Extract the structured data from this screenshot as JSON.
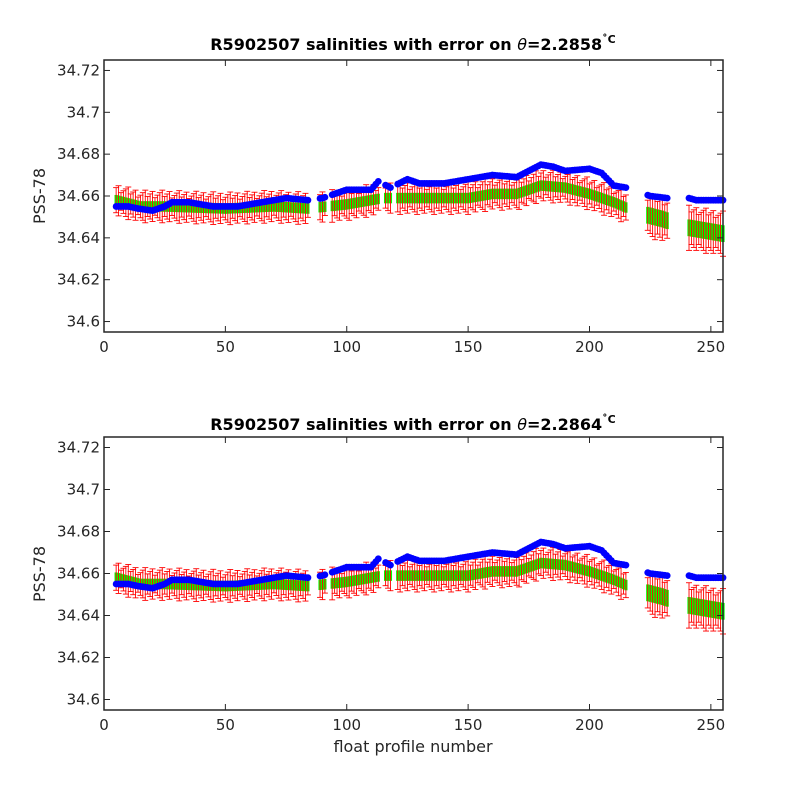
{
  "chart_data": [
    {
      "type": "scatter",
      "title": "R5902507 salinities with error on θ=2.2858°C",
      "title_parts": {
        "prefix": "R5902507 salinities with error on ",
        "symbol": "θ",
        "value": "=2.2858",
        "unit": "˚C"
      },
      "xlabel": "",
      "ylabel": "PSS-78",
      "xlim": [
        0,
        255
      ],
      "ylim": [
        34.595,
        34.725
      ],
      "xticks": [
        0,
        50,
        100,
        150,
        200,
        250
      ],
      "yticks": [
        34.6,
        34.62,
        34.64,
        34.66,
        34.68,
        34.7,
        34.72
      ],
      "ytick_labels": [
        "34.6",
        "34.62",
        "34.64",
        "34.66",
        "34.68",
        "34.7",
        "34.72"
      ],
      "grid": false,
      "series_colors": {
        "raw": "#0000ff",
        "calibrated": "#00ff00",
        "error_bars": "#ff0000"
      },
      "raw_anchors": [
        [
          5,
          34.655
        ],
        [
          10,
          34.655
        ],
        [
          14,
          34.654
        ],
        [
          20,
          34.653
        ],
        [
          25,
          34.655
        ],
        [
          28,
          34.657
        ],
        [
          35,
          34.657
        ],
        [
          45,
          34.655
        ],
        [
          55,
          34.655
        ],
        [
          65,
          34.657
        ],
        [
          75,
          34.659
        ],
        [
          84,
          34.658
        ],
        [
          90,
          34.659
        ],
        [
          100,
          34.663
        ],
        [
          110,
          34.663
        ],
        [
          113,
          34.667
        ],
        [
          118,
          34.664
        ],
        [
          125,
          34.668
        ],
        [
          130,
          34.666
        ],
        [
          140,
          34.666
        ],
        [
          150,
          34.668
        ],
        [
          160,
          34.67
        ],
        [
          170,
          34.669
        ],
        [
          175,
          34.672
        ],
        [
          180,
          34.675
        ],
        [
          185,
          34.674
        ],
        [
          190,
          34.672
        ],
        [
          200,
          34.673
        ],
        [
          205,
          34.671
        ],
        [
          210,
          34.665
        ],
        [
          215,
          34.664
        ],
        [
          218,
          34.663
        ],
        [
          225,
          34.66
        ],
        [
          232,
          34.659
        ],
        [
          238,
          34.66
        ],
        [
          244,
          34.658
        ],
        [
          255,
          34.658
        ]
      ],
      "cal_anchors": [
        [
          5,
          34.658
        ],
        [
          15,
          34.655
        ],
        [
          25,
          34.655
        ],
        [
          50,
          34.654
        ],
        [
          70,
          34.655
        ],
        [
          84,
          34.654
        ],
        [
          100,
          34.656
        ],
        [
          115,
          34.659
        ],
        [
          125,
          34.659
        ],
        [
          150,
          34.659
        ],
        [
          160,
          34.661
        ],
        [
          170,
          34.661
        ],
        [
          180,
          34.665
        ],
        [
          190,
          34.664
        ],
        [
          200,
          34.661
        ],
        [
          210,
          34.657
        ],
        [
          220,
          34.652
        ],
        [
          230,
          34.649
        ],
        [
          240,
          34.645
        ],
        [
          255,
          34.642
        ]
      ],
      "err_halfwidth": 0.006,
      "err_halfwidth_end": 0.009,
      "gaps": [
        [
          85,
          88
        ],
        [
          92,
          93
        ],
        [
          114,
          115
        ],
        [
          119,
          120
        ],
        [
          216,
          223
        ],
        [
          233,
          240
        ]
      ]
    },
    {
      "type": "scatter",
      "title": "R5902507 salinities with error on θ=2.2864°C",
      "title_parts": {
        "prefix": "R5902507 salinities with error on ",
        "symbol": "θ",
        "value": "=2.2864",
        "unit": "˚C"
      },
      "xlabel": "float profile number",
      "ylabel": "PSS-78",
      "xlim": [
        0,
        255
      ],
      "ylim": [
        34.595,
        34.725
      ],
      "xticks": [
        0,
        50,
        100,
        150,
        200,
        250
      ],
      "yticks": [
        34.6,
        34.62,
        34.64,
        34.66,
        34.68,
        34.7,
        34.72
      ],
      "ytick_labels": [
        "34.6",
        "34.62",
        "34.64",
        "34.66",
        "34.68",
        "34.7",
        "34.72"
      ],
      "grid": false,
      "series_colors": {
        "raw": "#0000ff",
        "calibrated": "#00ff00",
        "error_bars": "#ff0000"
      },
      "raw_anchors": [
        [
          5,
          34.655
        ],
        [
          10,
          34.655
        ],
        [
          14,
          34.654
        ],
        [
          20,
          34.653
        ],
        [
          25,
          34.655
        ],
        [
          28,
          34.657
        ],
        [
          35,
          34.657
        ],
        [
          45,
          34.655
        ],
        [
          55,
          34.655
        ],
        [
          65,
          34.657
        ],
        [
          75,
          34.659
        ],
        [
          84,
          34.658
        ],
        [
          90,
          34.659
        ],
        [
          100,
          34.663
        ],
        [
          110,
          34.663
        ],
        [
          113,
          34.667
        ],
        [
          118,
          34.664
        ],
        [
          125,
          34.668
        ],
        [
          130,
          34.666
        ],
        [
          140,
          34.666
        ],
        [
          150,
          34.668
        ],
        [
          160,
          34.67
        ],
        [
          170,
          34.669
        ],
        [
          175,
          34.672
        ],
        [
          180,
          34.675
        ],
        [
          185,
          34.674
        ],
        [
          190,
          34.672
        ],
        [
          200,
          34.673
        ],
        [
          205,
          34.671
        ],
        [
          210,
          34.665
        ],
        [
          215,
          34.664
        ],
        [
          218,
          34.663
        ],
        [
          225,
          34.66
        ],
        [
          232,
          34.659
        ],
        [
          238,
          34.66
        ],
        [
          244,
          34.658
        ],
        [
          255,
          34.658
        ]
      ],
      "cal_anchors": [
        [
          5,
          34.658
        ],
        [
          15,
          34.655
        ],
        [
          25,
          34.655
        ],
        [
          50,
          34.654
        ],
        [
          70,
          34.655
        ],
        [
          84,
          34.654
        ],
        [
          100,
          34.656
        ],
        [
          115,
          34.659
        ],
        [
          125,
          34.659
        ],
        [
          150,
          34.659
        ],
        [
          160,
          34.661
        ],
        [
          170,
          34.661
        ],
        [
          180,
          34.665
        ],
        [
          190,
          34.664
        ],
        [
          200,
          34.661
        ],
        [
          210,
          34.657
        ],
        [
          220,
          34.652
        ],
        [
          230,
          34.649
        ],
        [
          240,
          34.645
        ],
        [
          255,
          34.642
        ]
      ],
      "err_halfwidth": 0.006,
      "err_halfwidth_end": 0.009,
      "gaps": [
        [
          85,
          88
        ],
        [
          92,
          93
        ],
        [
          114,
          115
        ],
        [
          119,
          120
        ],
        [
          216,
          223
        ],
        [
          233,
          240
        ]
      ]
    }
  ]
}
